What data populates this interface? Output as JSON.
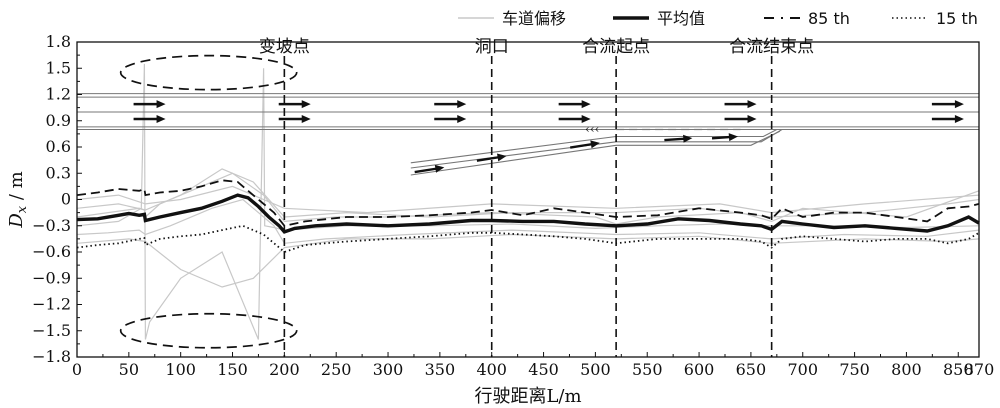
{
  "chart_data": {
    "type": "line",
    "xlabel": "行驶距离L/m",
    "ylabel": "Dx / m",
    "ylabel_main": "D",
    "ylabel_sub": "x",
    "ylabel_unit": " / m",
    "xlim": [
      0,
      870
    ],
    "ylim": [
      -1.8,
      1.8
    ],
    "x_ticks": [
      0,
      50,
      100,
      150,
      200,
      250,
      300,
      350,
      400,
      450,
      500,
      550,
      600,
      650,
      700,
      750,
      800,
      850,
      870
    ],
    "x_tick_labels": [
      "0",
      "50",
      "100",
      "150",
      "200",
      "250",
      "300",
      "350",
      "400",
      "450",
      "500",
      "550",
      "600",
      "650",
      "700",
      "750",
      "800",
      "850",
      "870"
    ],
    "y_ticks": [
      1.8,
      1.5,
      1.2,
      0.9,
      0.6,
      0.3,
      0,
      -0.3,
      -0.6,
      -0.9,
      -1.2,
      -1.5,
      -1.8
    ],
    "y_tick_labels": [
      "1.8",
      "1.5",
      "1.2",
      "0.9",
      "0.6",
      "0.3",
      "0",
      "−0.3",
      "−0.6",
      "−0.9",
      "−1.2",
      "−1.5",
      "−1.8"
    ],
    "grid": false,
    "legend_position": "top-right",
    "legend": [
      "车道偏移",
      "平均值",
      "85 th",
      "15 th"
    ],
    "colors": {
      "individual": "#c8c8c8",
      "mean": "#111111",
      "p85": "#111111",
      "p15": "#111111",
      "annotation": "#111111"
    },
    "markers": [
      {
        "x": 200,
        "label": "变坡点"
      },
      {
        "x": 400,
        "label": "洞口"
      },
      {
        "x": 520,
        "label": "合流起点"
      },
      {
        "x": 670,
        "label": "合流结束点"
      }
    ],
    "series": [
      {
        "name": "平均值",
        "x": [
          0,
          20,
          40,
          50,
          60,
          65,
          66,
          80,
          100,
          120,
          140,
          155,
          165,
          175,
          185,
          195,
          200,
          210,
          230,
          260,
          300,
          340,
          380,
          400,
          430,
          460,
          490,
          520,
          550,
          580,
          610,
          640,
          660,
          670,
          680,
          700,
          730,
          760,
          790,
          820,
          840,
          860,
          870
        ],
        "values": [
          -0.23,
          -0.22,
          -0.18,
          -0.16,
          -0.18,
          -0.17,
          -0.24,
          -0.2,
          -0.15,
          -0.1,
          -0.02,
          0.05,
          0.02,
          -0.08,
          -0.2,
          -0.3,
          -0.37,
          -0.33,
          -0.3,
          -0.28,
          -0.3,
          -0.28,
          -0.24,
          -0.24,
          -0.25,
          -0.25,
          -0.28,
          -0.3,
          -0.28,
          -0.22,
          -0.24,
          -0.28,
          -0.3,
          -0.34,
          -0.25,
          -0.28,
          -0.32,
          -0.3,
          -0.33,
          -0.36,
          -0.3,
          -0.2,
          -0.27
        ]
      },
      {
        "name": "85 th",
        "x": [
          0,
          20,
          40,
          60,
          65,
          66,
          80,
          100,
          120,
          140,
          155,
          165,
          175,
          190,
          200,
          220,
          260,
          300,
          340,
          380,
          400,
          430,
          460,
          490,
          520,
          560,
          600,
          640,
          660,
          670,
          680,
          700,
          730,
          760,
          790,
          820,
          840,
          860,
          870
        ],
        "values": [
          0.05,
          0.08,
          0.12,
          0.1,
          0.12,
          0.05,
          0.08,
          0.1,
          0.15,
          0.22,
          0.2,
          0.1,
          0.0,
          -0.15,
          -0.3,
          -0.25,
          -0.2,
          -0.2,
          -0.18,
          -0.15,
          -0.12,
          -0.18,
          -0.1,
          -0.15,
          -0.2,
          -0.18,
          -0.1,
          -0.15,
          -0.18,
          -0.22,
          -0.1,
          -0.2,
          -0.15,
          -0.15,
          -0.2,
          -0.25,
          -0.1,
          -0.08,
          -0.05
        ]
      },
      {
        "name": "15 th",
        "x": [
          0,
          20,
          40,
          60,
          65,
          66,
          80,
          100,
          120,
          140,
          160,
          180,
          195,
          200,
          220,
          260,
          300,
          340,
          380,
          400,
          430,
          460,
          490,
          520,
          560,
          600,
          640,
          660,
          670,
          680,
          700,
          730,
          760,
          790,
          820,
          840,
          860,
          870
        ],
        "values": [
          -0.55,
          -0.52,
          -0.5,
          -0.45,
          -0.44,
          -0.52,
          -0.45,
          -0.42,
          -0.4,
          -0.35,
          -0.3,
          -0.4,
          -0.55,
          -0.6,
          -0.52,
          -0.48,
          -0.45,
          -0.42,
          -0.38,
          -0.38,
          -0.4,
          -0.42,
          -0.45,
          -0.5,
          -0.45,
          -0.45,
          -0.45,
          -0.48,
          -0.55,
          -0.45,
          -0.42,
          -0.45,
          -0.48,
          -0.45,
          -0.45,
          -0.5,
          -0.45,
          -0.38
        ]
      },
      {
        "name": "车道偏移",
        "x": [
          0,
          30,
          60,
          65,
          66,
          80,
          120,
          150,
          180,
          200,
          250,
          300,
          400,
          500,
          520,
          560,
          640,
          670,
          700,
          800,
          870
        ],
        "values": [
          -0.2,
          -0.15,
          -0.1,
          -0.12,
          -0.2,
          -0.05,
          0.15,
          0.3,
          0.05,
          -0.25,
          -0.2,
          -0.2,
          -0.15,
          -0.2,
          -0.28,
          -0.2,
          -0.15,
          -0.25,
          -0.1,
          -0.2,
          0.1
        ]
      },
      {
        "x": [
          0,
          40,
          62,
          65,
          66,
          70,
          100,
          140,
          175,
          180,
          181,
          190,
          200,
          260,
          340,
          420,
          500,
          560,
          620,
          670,
          720,
          800,
          870
        ],
        "values": [
          -0.3,
          -0.25,
          -0.1,
          1.55,
          -1.6,
          -1.4,
          -0.9,
          -0.6,
          -1.6,
          1.5,
          -0.3,
          -0.32,
          -0.35,
          -0.3,
          -0.3,
          -0.28,
          -0.33,
          -0.3,
          -0.28,
          -0.3,
          -0.3,
          -0.32,
          -0.3
        ]
      },
      {
        "x": [
          0,
          30,
          60,
          66,
          90,
          130,
          160,
          190,
          200,
          240,
          320,
          420,
          520,
          600,
          670,
          740,
          820,
          870
        ],
        "values": [
          -0.4,
          -0.38,
          -0.35,
          -0.4,
          -0.3,
          -0.1,
          0.0,
          -0.3,
          -0.5,
          -0.45,
          -0.4,
          -0.35,
          -0.4,
          -0.38,
          -0.45,
          -0.4,
          -0.42,
          -0.35
        ]
      },
      {
        "x": [
          0,
          40,
          66,
          100,
          140,
          170,
          200,
          260,
          340,
          420,
          520,
          600,
          670,
          760,
          840,
          870
        ],
        "values": [
          -0.1,
          -0.05,
          -0.12,
          0.05,
          0.35,
          0.2,
          -0.2,
          -0.15,
          -0.2,
          -0.15,
          -0.15,
          -0.1,
          -0.2,
          -0.15,
          -0.05,
          0.0
        ]
      },
      {
        "x": [
          0,
          50,
          66,
          100,
          140,
          170,
          200,
          260,
          340,
          420,
          520,
          600,
          670,
          760,
          840,
          870
        ],
        "values": [
          -0.5,
          -0.45,
          -0.48,
          -0.8,
          -1.0,
          -0.9,
          -0.55,
          -0.45,
          -0.45,
          -0.4,
          -0.45,
          -0.42,
          -0.5,
          -0.45,
          -0.48,
          -0.45
        ]
      },
      {
        "x": [
          0,
          40,
          66,
          100,
          150,
          200,
          280,
          400,
          520,
          620,
          670,
          760,
          870
        ],
        "values": [
          0.0,
          0.05,
          -0.05,
          0.0,
          0.15,
          -0.1,
          -0.15,
          -0.05,
          -0.1,
          -0.05,
          -0.15,
          -0.05,
          0.05
        ]
      }
    ]
  },
  "icons": {
    "lane_schematic": "road-lane-schematic-icon",
    "ellipse_top": "dashed-ellipse-top",
    "ellipse_bottom": "dashed-ellipse-bottom"
  }
}
